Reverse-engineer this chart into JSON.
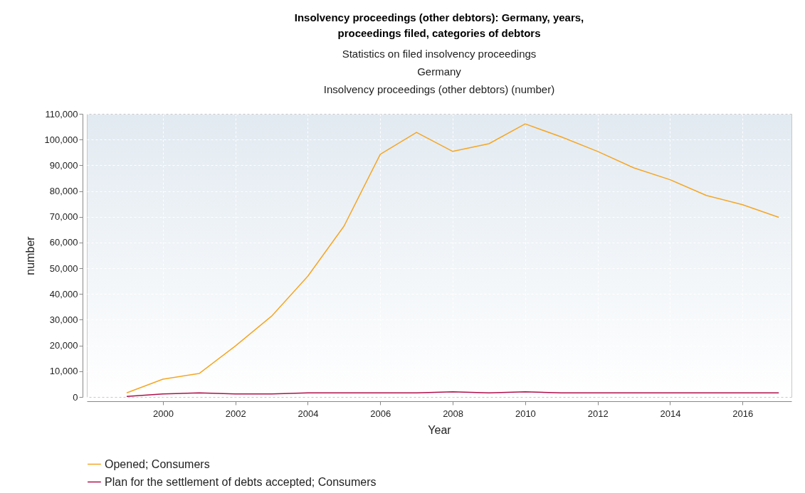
{
  "chart_data": {
    "type": "line",
    "title": "Insolvency proceedings (other debtors): Germany, years,\nproceedings filed, categories of debtors",
    "subtitle": "Statistics on filed insolvency proceedings\nGermany\nInsolvency proceedings (other debtors) (number)",
    "xlabel": "Year",
    "ylabel": "number",
    "x": [
      1999,
      2000,
      2001,
      2002,
      2003,
      2004,
      2005,
      2006,
      2007,
      2008,
      2009,
      2010,
      2011,
      2012,
      2013,
      2014,
      2015,
      2016,
      2017
    ],
    "series": [
      {
        "name": "Opened; Consumers",
        "color": "#f5a623",
        "values": [
          1600,
          6900,
          9100,
          19800,
          31400,
          46900,
          66400,
          94300,
          102800,
          95400,
          98400,
          106100,
          101000,
          95400,
          89000,
          84400,
          78300,
          74700,
          69800
        ]
      },
      {
        "name": "Plan for the settlement of debts accepted; Consumers",
        "color": "#b0104a",
        "values": [
          200,
          1200,
          1600,
          1200,
          1200,
          1600,
          1600,
          1600,
          1600,
          2000,
          1600,
          2000,
          1600,
          1600,
          1600,
          1600,
          1600,
          1600,
          1600
        ]
      }
    ],
    "xlim": [
      1997.9,
      2017.35
    ],
    "xticks": [
      2000,
      2002,
      2004,
      2006,
      2008,
      2010,
      2012,
      2014,
      2016
    ],
    "ylim": [
      0,
      110000
    ],
    "yticks": [
      0,
      {
        "value": 10000,
        "label": "10,000"
      },
      {
        "value": 20000,
        "label": "20,000"
      },
      {
        "value": 30000,
        "label": "30,000"
      },
      {
        "value": 40000,
        "label": "40,000"
      },
      {
        "value": 50000,
        "label": "50,000"
      },
      {
        "value": 60000,
        "label": "60,000"
      },
      {
        "value": 70000,
        "label": "70,000"
      },
      {
        "value": 80000,
        "label": "80,000"
      },
      {
        "value": 90000,
        "label": "90,000"
      },
      {
        "value": 100000,
        "label": "100,000"
      },
      {
        "value": 110000,
        "label": "110,000"
      }
    ],
    "grid": true,
    "legend": "bottom left",
    "marker": "none",
    "line_style": "solid"
  }
}
